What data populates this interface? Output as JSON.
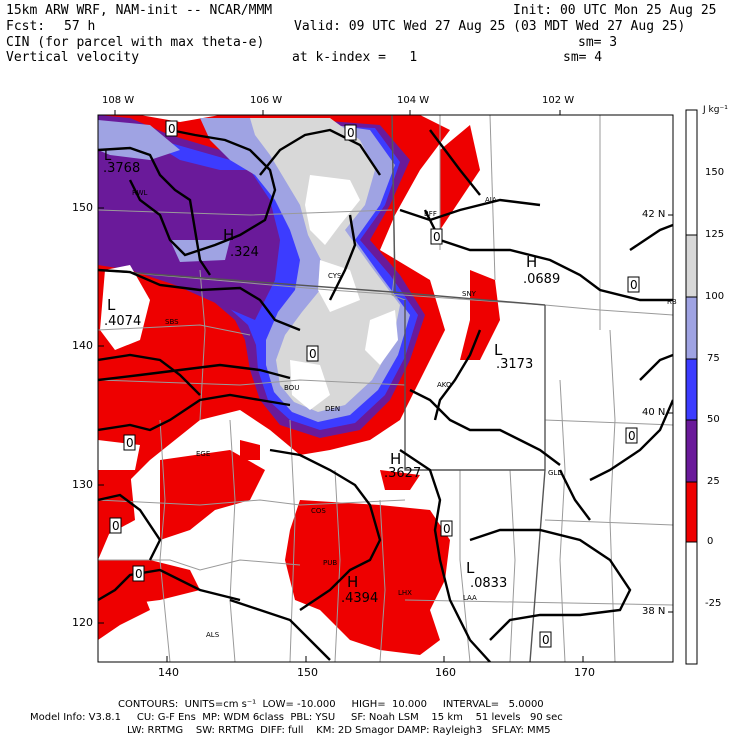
{
  "header": {
    "model": "15km ARW WRF, NAM-init -- NCAR/MMM",
    "init": "Init: 00 UTC Mon 25 Aug 25",
    "fcst_label": "Fcst:",
    "fcst_value": "57 h",
    "valid": "Valid: 09 UTC Wed 27 Aug 25 (03 MDT Wed 27 Aug 25)",
    "field1": "CIN (for parcel with max theta-e)",
    "sm1": "sm= 3",
    "field2": "Vertical velocity",
    "kindex": "at k-index =   1",
    "sm2": "sm= 4"
  },
  "map": {
    "lon_labels": [
      "108 W",
      "106 W",
      "104 W",
      "102 W"
    ],
    "lat_labels": [
      "42 N",
      "40 N",
      "38 N"
    ],
    "y_ticks": [
      "150",
      "140",
      "130",
      "120"
    ],
    "x_ticks": [
      "140",
      "150",
      "160",
      "170"
    ],
    "cities": [
      "RWL",
      "CYS",
      "BFF",
      "AIA",
      "SNY",
      "SBS",
      "BOU",
      "DEN",
      "AKO",
      "GLD",
      "COS",
      "PUB",
      "LAA",
      "ALS",
      "LHX",
      "EGE",
      "RB"
    ],
    "highs": [
      {
        "letter": "H",
        "value": ".324"
      },
      {
        "letter": "H",
        "value": ".0689"
      },
      {
        "letter": "H",
        "value": ".3627"
      },
      {
        "letter": "H",
        "value": ".4394"
      }
    ],
    "lows": [
      {
        "letter": "L",
        "value": ".3768"
      },
      {
        "letter": "L",
        "value": ".4074"
      },
      {
        "letter": "L",
        "value": ".3173"
      },
      {
        "letter": "L",
        "value": ".0833"
      }
    ],
    "zero_labels": [
      "0"
    ]
  },
  "colorbar": {
    "unit": "J kg⁻¹",
    "levels": [
      "150",
      "125",
      "100",
      "75",
      "50",
      "25",
      "0",
      "-25"
    ],
    "colors": [
      "#ffffff",
      "#d8d8d8",
      "#9fa3e3",
      "#3c3cff",
      "#6a1a9a",
      "#ee0000",
      "#ffffff"
    ]
  },
  "footer": {
    "contours": "CONTOURS:  UNITS=cm s⁻¹  LOW= -10.000     HIGH=  10.000     INTERVAL=   5.0000",
    "model_info": "Model Info: V3.8.1     CU: G-F Ens  MP: WDM 6class  PBL: YSU     SF: Noah LSM    15 km    51 levels   90 sec",
    "model_info2": "LW: RRTMG    SW: RRTMG  DIFF: full    KM: 2D Smagor DAMP: Rayleigh3   SFLAY: MM5"
  }
}
